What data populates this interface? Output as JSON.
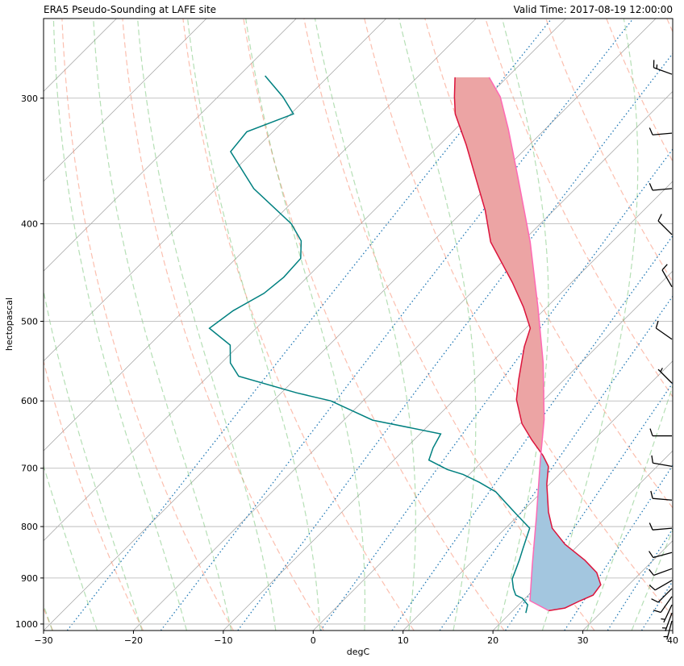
{
  "chart_data": {
    "type": "skewt",
    "title": "ERA5 Pseudo-Sounding at LAFE site",
    "title_right": "Valid Time: 2017-08-19 12:00:00",
    "xlabel": "degC",
    "ylabel": "hectopascal",
    "xlim": [
      -30,
      40
    ],
    "ylim": [
      1015,
      250
    ],
    "y_log": true,
    "grid": true,
    "xticks": [
      {
        "value": -30,
        "label": "−30"
      },
      {
        "value": -20,
        "label": "−20"
      },
      {
        "value": -10,
        "label": "−10"
      },
      0,
      10,
      20,
      30,
      40
    ],
    "yticks": [
      300,
      400,
      500,
      600,
      700,
      800,
      900,
      1000
    ],
    "series": [
      {
        "color": "#dc143c",
        "pressure": [
          970,
          964,
          948,
          936,
          914,
          889,
          864,
          833,
          803,
          774,
          726,
          697,
          680,
          656,
          632,
          598,
          571,
          530,
          508,
          484,
          458,
          437,
          417,
          388,
          360,
          334,
          311,
          299,
          286
        ],
        "values": [
          24.0,
          25.5,
          26.4,
          27.2,
          26.9,
          25.1,
          22.4,
          18.4,
          15.2,
          13.0,
          9.7,
          7.9,
          6.1,
          3.1,
          0.2,
          -3.1,
          -5.1,
          -8.1,
          -9.5,
          -12.6,
          -16.5,
          -20.0,
          -23.5,
          -27.6,
          -32.3,
          -37.0,
          -41.7,
          -43.7,
          -45.8
        ]
      },
      {
        "color": "#008080",
        "pressure": [
          975,
          957,
          943,
          936,
          922,
          902,
          881,
          864,
          841,
          803,
          778,
          739,
          723,
          710,
          702,
          687,
          668,
          647,
          627,
          600,
          589,
          567,
          550,
          528,
          508,
          488,
          469,
          452,
          433,
          416,
          400,
          369,
          339,
          324,
          311,
          299,
          285
        ],
        "values": [
          21.7,
          21.0,
          19.7,
          18.6,
          17.6,
          16.4,
          15.7,
          15.1,
          14.2,
          12.7,
          9.7,
          4.9,
          2.0,
          -0.7,
          -3.0,
          -6.1,
          -7.0,
          -7.7,
          -16.8,
          -23.6,
          -28.3,
          -36.6,
          -39.0,
          -41.0,
          -45.2,
          -44.5,
          -43.0,
          -42.6,
          -42.8,
          -44.7,
          -47.7,
          -55.8,
          -62.5,
          -62.9,
          -59.7,
          -62.8,
          -67.1
        ]
      },
      {
        "color": "#ff69b4",
        "pressure": [
          970,
          948,
          872,
          781,
          687,
          626,
          550,
          484,
          417,
          360,
          322,
          299,
          286
        ],
        "values": [
          24.0,
          20.8,
          17.0,
          12.1,
          6.3,
          2.2,
          -4.2,
          -11.0,
          -19.1,
          -27.6,
          -34.1,
          -38.6,
          -42.0
        ]
      }
    ],
    "cape_color": "#eca4a4",
    "cin_color": "#a3c6df",
    "wind": {
      "color": "#000000",
      "pressure": [
        284,
        325,
        369,
        410,
        462,
        521,
        576,
        650,
        697,
        753,
        803,
        849,
        881,
        905,
        922,
        939,
        957,
        975,
        993
      ],
      "speed": [
        15,
        10,
        10,
        10,
        10,
        10,
        5,
        10,
        10,
        10,
        10,
        10,
        10,
        10,
        10,
        10,
        5,
        5,
        5
      ],
      "direction": [
        290,
        265,
        265,
        315,
        330,
        305,
        315,
        270,
        280,
        275,
        265,
        255,
        250,
        240,
        225,
        215,
        205,
        200,
        195
      ]
    }
  }
}
